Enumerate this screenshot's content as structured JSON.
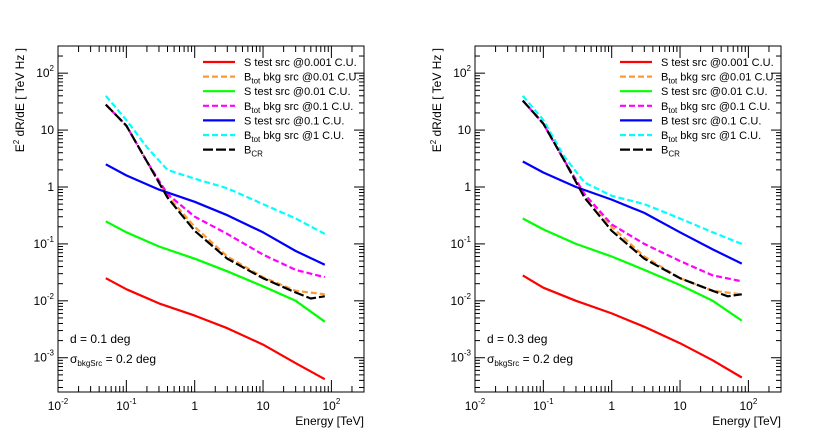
{
  "chart_data": [
    {
      "type": "line",
      "xscale": "log",
      "yscale": "log",
      "xlim": [
        0.01,
        300
      ],
      "ylim": [
        0.00025,
        300
      ],
      "xlabel": "Energy [TeV]",
      "ylabel_main": "E",
      "ylabel_sup": "2",
      "ylabel_rest": " dR/dE [ TeV Hz ]",
      "xticks": [
        {
          "v": 0.01,
          "m": "10",
          "e": "-2"
        },
        {
          "v": 0.1,
          "m": "10",
          "e": "-1"
        },
        {
          "v": 1,
          "m": "1",
          "e": ""
        },
        {
          "v": 10,
          "m": "10",
          "e": ""
        },
        {
          "v": 100,
          "m": "10",
          "e": "2"
        }
      ],
      "yticks": [
        {
          "v": 0.001,
          "m": "10",
          "e": "-3"
        },
        {
          "v": 0.01,
          "m": "10",
          "e": "-2"
        },
        {
          "v": 0.1,
          "m": "10",
          "e": "-1"
        },
        {
          "v": 1,
          "m": "1",
          "e": ""
        },
        {
          "v": 10,
          "m": "10",
          "e": ""
        },
        {
          "v": 100,
          "m": "10",
          "e": "2"
        }
      ],
      "annotation_1": "d = 0.1 deg",
      "annotation_2_main": "σ",
      "annotation_2_sub": "bkgSrc",
      "annotation_2_rest": " = 0.2 deg",
      "series": [
        {
          "label_main": "S",
          "label_sub": "",
          "label_rest": "   test src @0.001 C.U.",
          "color": "#ff0000",
          "dash": "",
          "points": [
            [
              0.05,
              0.025
            ],
            [
              0.1,
              0.016
            ],
            [
              0.3,
              0.009
            ],
            [
              1,
              0.0055
            ],
            [
              3,
              0.0033
            ],
            [
              10,
              0.0017
            ],
            [
              30,
              0.0008
            ],
            [
              80,
              0.00042
            ]
          ]
        },
        {
          "label_main": "B",
          "label_sub": "tot",
          "label_rest": "  bkg src @0.01 C.U.",
          "color": "#ff9933",
          "dash": "6,3",
          "points": [
            [
              0.05,
              28
            ],
            [
              0.1,
              12
            ],
            [
              0.2,
              2.8
            ],
            [
              0.4,
              0.7
            ],
            [
              1,
              0.2
            ],
            [
              3,
              0.06
            ],
            [
              10,
              0.026
            ],
            [
              30,
              0.015
            ],
            [
              80,
              0.013
            ]
          ]
        },
        {
          "label_main": "S",
          "label_sub": "",
          "label_rest": "   test src @0.01 C.U.",
          "color": "#00ff00",
          "dash": "",
          "points": [
            [
              0.05,
              0.25
            ],
            [
              0.1,
              0.16
            ],
            [
              0.3,
              0.09
            ],
            [
              1,
              0.055
            ],
            [
              3,
              0.033
            ],
            [
              10,
              0.018
            ],
            [
              30,
              0.01
            ],
            [
              80,
              0.0043
            ]
          ]
        },
        {
          "label_main": "B",
          "label_sub": "tot",
          "label_rest": "  bkg src @0.1 C.U.",
          "color": "#ff00ff",
          "dash": "6,3",
          "points": [
            [
              0.05,
              28
            ],
            [
              0.1,
              12
            ],
            [
              0.2,
              2.8
            ],
            [
              0.4,
              0.75
            ],
            [
              1,
              0.3
            ],
            [
              3,
              0.15
            ],
            [
              10,
              0.065
            ],
            [
              30,
              0.035
            ],
            [
              80,
              0.026
            ]
          ]
        },
        {
          "label_main": "S",
          "label_sub": "",
          "label_rest": "   test src @0.1 C.U.",
          "color": "#0000ff",
          "dash": "",
          "points": [
            [
              0.05,
              2.5
            ],
            [
              0.1,
              1.6
            ],
            [
              0.3,
              0.9
            ],
            [
              1,
              0.55
            ],
            [
              3,
              0.32
            ],
            [
              10,
              0.16
            ],
            [
              30,
              0.075
            ],
            [
              80,
              0.043
            ]
          ]
        },
        {
          "label_main": "B",
          "label_sub": "tot",
          "label_rest": "  bkg src @1 C.U.",
          "color": "#00ffff",
          "dash": "6,3",
          "points": [
            [
              0.05,
              40
            ],
            [
              0.1,
              15
            ],
            [
              0.2,
              5
            ],
            [
              0.4,
              2
            ],
            [
              1,
              1.4
            ],
            [
              3,
              0.95
            ],
            [
              10,
              0.5
            ],
            [
              30,
              0.28
            ],
            [
              80,
              0.15
            ]
          ]
        },
        {
          "label_main": "B",
          "label_sub": "CR",
          "label_rest": "",
          "color": "#000000",
          "dash": "10,3",
          "points": [
            [
              0.05,
              28
            ],
            [
              0.1,
              12
            ],
            [
              0.2,
              2.8
            ],
            [
              0.4,
              0.65
            ],
            [
              1,
              0.17
            ],
            [
              3,
              0.055
            ],
            [
              10,
              0.025
            ],
            [
              30,
              0.014
            ],
            [
              50,
              0.011
            ],
            [
              80,
              0.012
            ]
          ]
        }
      ]
    },
    {
      "type": "line",
      "xscale": "log",
      "yscale": "log",
      "xlim": [
        0.01,
        300
      ],
      "ylim": [
        0.00025,
        300
      ],
      "xlabel": "Energy [TeV]",
      "ylabel_main": "E",
      "ylabel_sup": "2",
      "ylabel_rest": " dR/dE [ TeV Hz ]",
      "xticks": [
        {
          "v": 0.01,
          "m": "10",
          "e": "-2"
        },
        {
          "v": 0.1,
          "m": "10",
          "e": "-1"
        },
        {
          "v": 1,
          "m": "1",
          "e": ""
        },
        {
          "v": 10,
          "m": "10",
          "e": ""
        },
        {
          "v": 100,
          "m": "10",
          "e": "2"
        }
      ],
      "yticks": [
        {
          "v": 0.001,
          "m": "10",
          "e": "-3"
        },
        {
          "v": 0.01,
          "m": "10",
          "e": "-2"
        },
        {
          "v": 0.1,
          "m": "10",
          "e": "-1"
        },
        {
          "v": 1,
          "m": "1",
          "e": ""
        },
        {
          "v": 10,
          "m": "10",
          "e": ""
        },
        {
          "v": 100,
          "m": "10",
          "e": "2"
        }
      ],
      "annotation_1": "d = 0.3 deg",
      "annotation_2_main": "σ",
      "annotation_2_sub": "bkgSrc",
      "annotation_2_rest": " = 0.2 deg",
      "series": [
        {
          "label_main": "S",
          "label_sub": "",
          "label_rest": "   test src @0.001 C.U.",
          "color": "#ff0000",
          "dash": "",
          "points": [
            [
              0.05,
              0.028
            ],
            [
              0.1,
              0.017
            ],
            [
              0.3,
              0.01
            ],
            [
              1,
              0.006
            ],
            [
              3,
              0.0035
            ],
            [
              10,
              0.0018
            ],
            [
              30,
              0.0009
            ],
            [
              80,
              0.00045
            ]
          ]
        },
        {
          "label_main": "B",
          "label_sub": "tot",
          "label_rest": "  bkg src @0.01 C.U.",
          "color": "#ff9933",
          "dash": "6,3",
          "points": [
            [
              0.05,
              33
            ],
            [
              0.1,
              13
            ],
            [
              0.2,
              3
            ],
            [
              0.4,
              0.75
            ],
            [
              1,
              0.2
            ],
            [
              3,
              0.06
            ],
            [
              10,
              0.025
            ],
            [
              30,
              0.015
            ],
            [
              80,
              0.013
            ]
          ]
        },
        {
          "label_main": "S",
          "label_sub": "",
          "label_rest": "   test src @0.01 C.U.",
          "color": "#00ff00",
          "dash": "",
          "points": [
            [
              0.05,
              0.28
            ],
            [
              0.1,
              0.18
            ],
            [
              0.3,
              0.1
            ],
            [
              1,
              0.06
            ],
            [
              3,
              0.035
            ],
            [
              10,
              0.019
            ],
            [
              30,
              0.01
            ],
            [
              80,
              0.0045
            ]
          ]
        },
        {
          "label_main": "B",
          "label_sub": "tot",
          "label_rest": "  bkg src @0.1 C.U.",
          "color": "#ff00ff",
          "dash": "6,3",
          "points": [
            [
              0.05,
              33
            ],
            [
              0.1,
              13
            ],
            [
              0.2,
              3
            ],
            [
              0.4,
              0.75
            ],
            [
              1,
              0.22
            ],
            [
              3,
              0.1
            ],
            [
              10,
              0.05
            ],
            [
              30,
              0.028
            ],
            [
              80,
              0.022
            ]
          ]
        },
        {
          "label_main": "B",
          "label_sub": "",
          "label_rest": "   test src @0.1 C.U.",
          "color": "#0000ff",
          "dash": "",
          "points": [
            [
              0.05,
              2.8
            ],
            [
              0.1,
              1.8
            ],
            [
              0.3,
              1
            ],
            [
              1,
              0.6
            ],
            [
              3,
              0.35
            ],
            [
              10,
              0.16
            ],
            [
              30,
              0.08
            ],
            [
              80,
              0.045
            ]
          ]
        },
        {
          "label_main": "B",
          "label_sub": "tot",
          "label_rest": "  bkg src @1 C.U.",
          "color": "#00ffff",
          "dash": "6,3",
          "points": [
            [
              0.05,
              40
            ],
            [
              0.1,
              15
            ],
            [
              0.2,
              3.5
            ],
            [
              0.4,
              1.2
            ],
            [
              1,
              0.7
            ],
            [
              3,
              0.5
            ],
            [
              10,
              0.28
            ],
            [
              30,
              0.16
            ],
            [
              80,
              0.1
            ]
          ]
        },
        {
          "label_main": "B",
          "label_sub": "CR",
          "label_rest": "",
          "color": "#000000",
          "dash": "10,3",
          "points": [
            [
              0.05,
              33
            ],
            [
              0.1,
              13
            ],
            [
              0.2,
              3
            ],
            [
              0.4,
              0.65
            ],
            [
              1,
              0.17
            ],
            [
              3,
              0.055
            ],
            [
              10,
              0.025
            ],
            [
              30,
              0.015
            ],
            [
              50,
              0.012
            ],
            [
              80,
              0.013
            ]
          ]
        }
      ]
    }
  ]
}
